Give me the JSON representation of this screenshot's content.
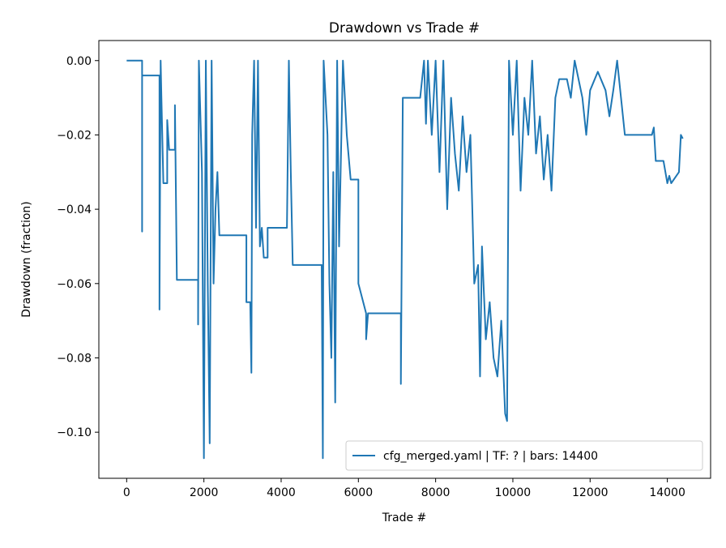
{
  "chart_data": {
    "type": "line",
    "title": "Drawdown vs Trade #",
    "xlabel": "Trade #",
    "ylabel": "Drawdown (fraction)",
    "x": [
      0,
      400,
      400,
      400,
      850,
      850,
      880,
      900,
      950,
      1050,
      1050,
      1100,
      1250,
      1250,
      1300,
      1850,
      1850,
      1870,
      1950,
      2000,
      2050,
      2100,
      2150,
      2200,
      2250,
      2300,
      2350,
      2400,
      3100,
      3100,
      3200,
      3230,
      3250,
      3300,
      3350,
      3400,
      3450,
      3500,
      3550,
      3650,
      3650,
      4150,
      4200,
      4250,
      4300,
      5050,
      5080,
      5100,
      5200,
      5250,
      5300,
      5350,
      5400,
      5450,
      5500,
      5600,
      5700,
      5800,
      6000,
      6000,
      6200,
      6200,
      6250,
      7100,
      7100,
      7150,
      7600,
      7700,
      7750,
      7800,
      7900,
      8000,
      8100,
      8200,
      8300,
      8400,
      8500,
      8600,
      8700,
      8800,
      8900,
      9000,
      9100,
      9150,
      9200,
      9300,
      9400,
      9500,
      9600,
      9700,
      9800,
      9850,
      9900,
      10000,
      10100,
      10200,
      10300,
      10400,
      10500,
      10600,
      10700,
      10800,
      10900,
      11000,
      11100,
      11200,
      11400,
      11500,
      11600,
      11800,
      11900,
      12000,
      12200,
      12400,
      12500,
      12600,
      12700,
      12800,
      12900,
      13600,
      13650,
      13700,
      13900,
      14000,
      14050,
      14100,
      14300,
      14350,
      14400
    ],
    "series": [
      {
        "name": "cfg_merged.yaml | TF: ? | bars: 14400",
        "color": "#1f77b4",
        "values": [
          0,
          0,
          -0.046,
          -0.004,
          -0.004,
          -0.067,
          0,
          -0.01,
          -0.033,
          -0.033,
          -0.016,
          -0.024,
          -0.024,
          -0.012,
          -0.059,
          -0.059,
          -0.071,
          0,
          -0.03,
          -0.107,
          0,
          -0.06,
          -0.103,
          0,
          -0.06,
          -0.04,
          -0.03,
          -0.047,
          -0.047,
          -0.065,
          -0.065,
          -0.084,
          -0.02,
          0,
          -0.045,
          0,
          -0.05,
          -0.045,
          -0.053,
          -0.053,
          -0.045,
          -0.045,
          0,
          -0.03,
          -0.055,
          -0.055,
          -0.107,
          0,
          -0.02,
          -0.06,
          -0.08,
          -0.03,
          -0.092,
          0,
          -0.05,
          0,
          -0.02,
          -0.032,
          -0.032,
          -0.06,
          -0.068,
          -0.075,
          -0.068,
          -0.068,
          -0.087,
          -0.01,
          -0.01,
          0,
          -0.017,
          0,
          -0.02,
          0,
          -0.03,
          0,
          -0.04,
          -0.01,
          -0.025,
          -0.035,
          -0.015,
          -0.03,
          -0.02,
          -0.06,
          -0.055,
          -0.085,
          -0.05,
          -0.075,
          -0.065,
          -0.08,
          -0.085,
          -0.07,
          -0.095,
          -0.097,
          0,
          -0.02,
          0,
          -0.035,
          -0.01,
          -0.02,
          0,
          -0.025,
          -0.015,
          -0.032,
          -0.02,
          -0.035,
          -0.01,
          -0.005,
          -0.005,
          -0.01,
          0,
          -0.01,
          -0.02,
          -0.008,
          -0.003,
          -0.008,
          -0.015,
          -0.008,
          0,
          -0.01,
          -0.02,
          -0.02,
          -0.018,
          -0.027,
          -0.027,
          -0.033,
          -0.031,
          -0.033,
          -0.03,
          -0.02,
          -0.021
        ]
      }
    ],
    "xlim": [
      -720,
      15120
    ],
    "ylim": [
      -0.1124,
      0.0054
    ],
    "xticks": [
      0,
      2000,
      4000,
      6000,
      8000,
      10000,
      12000,
      14000
    ],
    "yticks": [
      {
        "value": -0.1,
        "label": "−0.10"
      },
      {
        "value": -0.08,
        "label": "−0.08"
      },
      {
        "value": -0.06,
        "label": "−0.06"
      },
      {
        "value": -0.04,
        "label": "−0.04"
      },
      {
        "value": -0.02,
        "label": "−0.02"
      },
      {
        "value": 0,
        "label": "0.00"
      }
    ],
    "legend": "lower right"
  }
}
